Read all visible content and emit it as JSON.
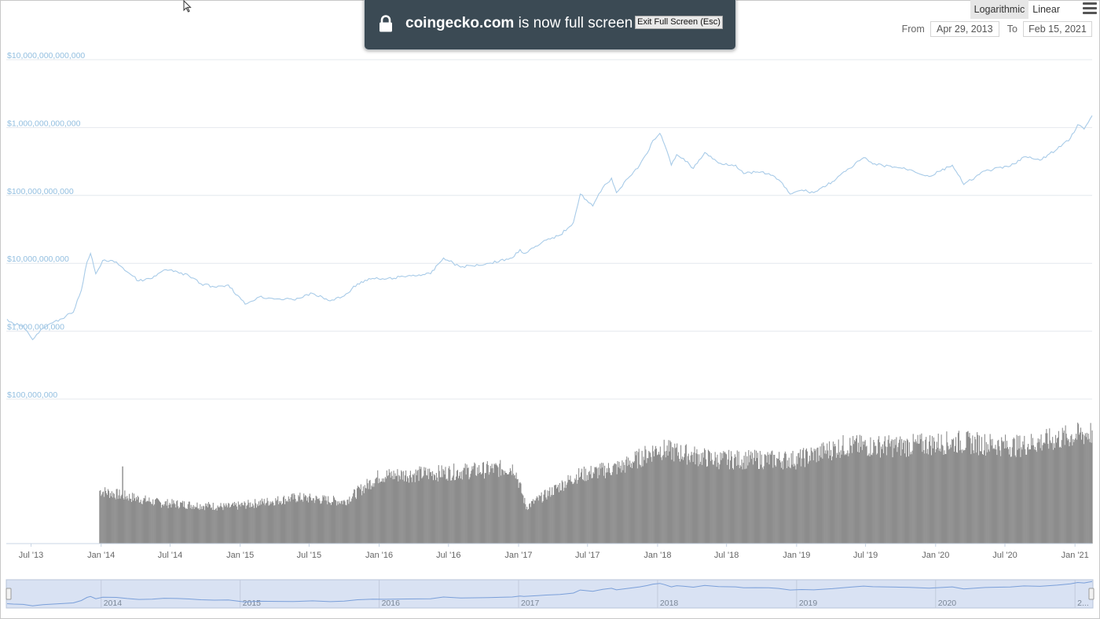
{
  "toast": {
    "domain": "coingecko.com",
    "message": " is now full screen",
    "exit_label": "Exit Full Screen (Esc)"
  },
  "toolbar": {
    "logarithmic_label": "Logarithmic",
    "linear_label": "Linear",
    "from_label": "From",
    "to_label": "To",
    "from_value": "Apr 29, 2013",
    "to_value": "Feb 15, 2021"
  },
  "colors": {
    "line": "#a8cbe8",
    "axis_label": "#93bfe0",
    "volume": "#8c8c8c",
    "navigator_fill": "#d9e2f3",
    "navigator_line": "#7a9fd9"
  },
  "chart_data": {
    "type": "line",
    "scale": "logarithmic",
    "grid": true,
    "y_tick_labels": [
      "$10,000,000,000,000",
      "$1,000,000,000,000",
      "$100,000,000,000",
      "$10,000,000,000",
      "$1,000,000,000",
      "$100,000,000"
    ],
    "y_tick_values": [
      10000000000000,
      1000000000000,
      100000000000,
      10000000000,
      1000000000,
      100000000
    ],
    "x_tick_labels": [
      "Jul '13",
      "Jan '14",
      "Jul '14",
      "Jan '15",
      "Jul '15",
      "Jan '16",
      "Jul '16",
      "Jan '17",
      "Jul '17",
      "Jan '18",
      "Jul '18",
      "Jan '19",
      "Jul '19",
      "Jan '20",
      "Jul '20",
      "Jan '21"
    ],
    "x_tick_dates": [
      "2013-07-01",
      "2014-01-01",
      "2014-07-01",
      "2015-01-01",
      "2015-07-01",
      "2016-01-01",
      "2016-07-01",
      "2017-01-01",
      "2017-07-01",
      "2018-01-01",
      "2018-07-01",
      "2019-01-01",
      "2019-07-01",
      "2020-01-01",
      "2020-07-01",
      "2021-01-01"
    ],
    "x_range": [
      "2013-04-29",
      "2021-02-15"
    ],
    "series": [
      {
        "values": [
          [
            "2013-04-29",
            1500000000.0
          ],
          [
            "2013-05-15",
            1300000000.0
          ],
          [
            "2013-06-10",
            1200000000.0
          ],
          [
            "2013-07-05",
            750000000.0
          ],
          [
            "2013-08-01",
            1100000000.0
          ],
          [
            "2013-09-15",
            1500000000.0
          ],
          [
            "2013-10-20",
            1900000000.0
          ],
          [
            "2013-11-10",
            4000000000.0
          ],
          [
            "2013-11-25",
            10500000000.0
          ],
          [
            "2013-12-04",
            14000000000.0
          ],
          [
            "2013-12-18",
            7000000000.0
          ],
          [
            "2014-01-05",
            11000000000.0
          ],
          [
            "2014-02-10",
            10500000000.0
          ],
          [
            "2014-03-10",
            7500000000.0
          ],
          [
            "2014-04-10",
            5500000000.0
          ],
          [
            "2014-05-15",
            6000000000.0
          ],
          [
            "2014-06-15",
            8000000000.0
          ],
          [
            "2014-07-20",
            7500000000.0
          ],
          [
            "2014-08-20",
            6500000000.0
          ],
          [
            "2014-09-20",
            5000000000.0
          ],
          [
            "2014-10-25",
            4500000000.0
          ],
          [
            "2014-12-01",
            4800000000.0
          ],
          [
            "2015-01-14",
            2500000000.0
          ],
          [
            "2015-02-20",
            3200000000.0
          ],
          [
            "2015-04-10",
            3000000000.0
          ],
          [
            "2015-05-20",
            2900000000.0
          ],
          [
            "2015-07-10",
            3600000000.0
          ],
          [
            "2015-08-25",
            2800000000.0
          ],
          [
            "2015-10-01",
            3300000000.0
          ],
          [
            "2015-11-05",
            5000000000.0
          ],
          [
            "2015-12-15",
            6000000000.0
          ],
          [
            "2016-01-15",
            5800000000.0
          ],
          [
            "2016-03-15",
            6500000000.0
          ],
          [
            "2016-05-15",
            7000000000.0
          ],
          [
            "2016-06-18",
            12000000000.0
          ],
          [
            "2016-08-02",
            8800000000.0
          ],
          [
            "2016-10-15",
            10000000000.0
          ],
          [
            "2016-12-15",
            12000000000.0
          ],
          [
            "2017-01-05",
            16000000000.0
          ],
          [
            "2017-01-15",
            14000000000.0
          ],
          [
            "2017-02-20",
            18000000000.0
          ],
          [
            "2017-03-15",
            22000000000.0
          ],
          [
            "2017-04-20",
            26000000000.0
          ],
          [
            "2017-05-25",
            40000000000.0
          ],
          [
            "2017-06-12",
            105000000000.0
          ],
          [
            "2017-07-15",
            70000000000.0
          ],
          [
            "2017-08-10",
            130000000000.0
          ],
          [
            "2017-09-02",
            180000000000.0
          ],
          [
            "2017-09-15",
            110000000000.0
          ],
          [
            "2017-10-20",
            190000000000.0
          ],
          [
            "2017-11-15",
            280000000000.0
          ],
          [
            "2017-12-05",
            420000000000.0
          ],
          [
            "2017-12-20",
            650000000000.0
          ],
          [
            "2018-01-07",
            820000000000.0
          ],
          [
            "2018-01-20",
            550000000000.0
          ],
          [
            "2018-02-06",
            280000000000.0
          ],
          [
            "2018-02-20",
            400000000000.0
          ],
          [
            "2018-03-10",
            350000000000.0
          ],
          [
            "2018-04-05",
            250000000000.0
          ],
          [
            "2018-05-05",
            430000000000.0
          ],
          [
            "2018-06-10",
            300000000000.0
          ],
          [
            "2018-07-25",
            280000000000.0
          ],
          [
            "2018-08-15",
            210000000000.0
          ],
          [
            "2018-09-15",
            220000000000.0
          ],
          [
            "2018-10-20",
            210000000000.0
          ],
          [
            "2018-11-15",
            170000000000.0
          ],
          [
            "2018-12-15",
            105000000000.0
          ],
          [
            "2019-01-15",
            120000000000.0
          ],
          [
            "2019-02-15",
            110000000000.0
          ],
          [
            "2019-04-05",
            160000000000.0
          ],
          [
            "2019-05-20",
            250000000000.0
          ],
          [
            "2019-06-26",
            360000000000.0
          ],
          [
            "2019-07-20",
            290000000000.0
          ],
          [
            "2019-09-20",
            260000000000.0
          ],
          [
            "2019-10-25",
            240000000000.0
          ],
          [
            "2019-12-15",
            190000000000.0
          ],
          [
            "2020-02-14",
            280000000000.0
          ],
          [
            "2020-03-15",
            145000000000.0
          ],
          [
            "2020-05-10",
            230000000000.0
          ],
          [
            "2020-07-15",
            270000000000.0
          ],
          [
            "2020-08-20",
            370000000000.0
          ],
          [
            "2020-10-01",
            330000000000.0
          ],
          [
            "2020-11-15",
            480000000000.0
          ],
          [
            "2020-12-20",
            700000000000.0
          ],
          [
            "2021-01-08",
            1100000000000.0
          ],
          [
            "2021-01-25",
            950000000000.0
          ],
          [
            "2021-02-15",
            1500000000000.0
          ]
        ]
      }
    ],
    "volume_series": {
      "values": [
        [
          "2013-12-27",
          0.39
        ],
        [
          "2014-06-01",
          0.3
        ],
        [
          "2014-12-01",
          0.27
        ],
        [
          "2015-06-01",
          0.34
        ],
        [
          "2015-10-01",
          0.31
        ],
        [
          "2016-01-01",
          0.5
        ],
        [
          "2016-06-01",
          0.52
        ],
        [
          "2016-12-20",
          0.56
        ],
        [
          "2017-01-20",
          0.27
        ],
        [
          "2017-06-01",
          0.5
        ],
        [
          "2017-10-01",
          0.57
        ],
        [
          "2018-01-01",
          0.7
        ],
        [
          "2018-06-01",
          0.62
        ],
        [
          "2019-01-01",
          0.62
        ],
        [
          "2019-05-01",
          0.72
        ],
        [
          "2019-10-01",
          0.72
        ],
        [
          "2020-03-01",
          0.75
        ],
        [
          "2020-08-01",
          0.72
        ],
        [
          "2021-02-15",
          0.82
        ]
      ],
      "spike": [
        "2014-02-25",
        0.53
      ]
    },
    "navigator": {
      "labels": [
        "2014",
        "2015",
        "2016",
        "2017",
        "2018",
        "2019",
        "2020",
        "2..."
      ],
      "label_dates": [
        "2014-01-01",
        "2015-01-01",
        "2016-01-01",
        "2017-01-01",
        "2018-01-01",
        "2019-01-01",
        "2020-01-01",
        "2021-01-01"
      ]
    }
  }
}
